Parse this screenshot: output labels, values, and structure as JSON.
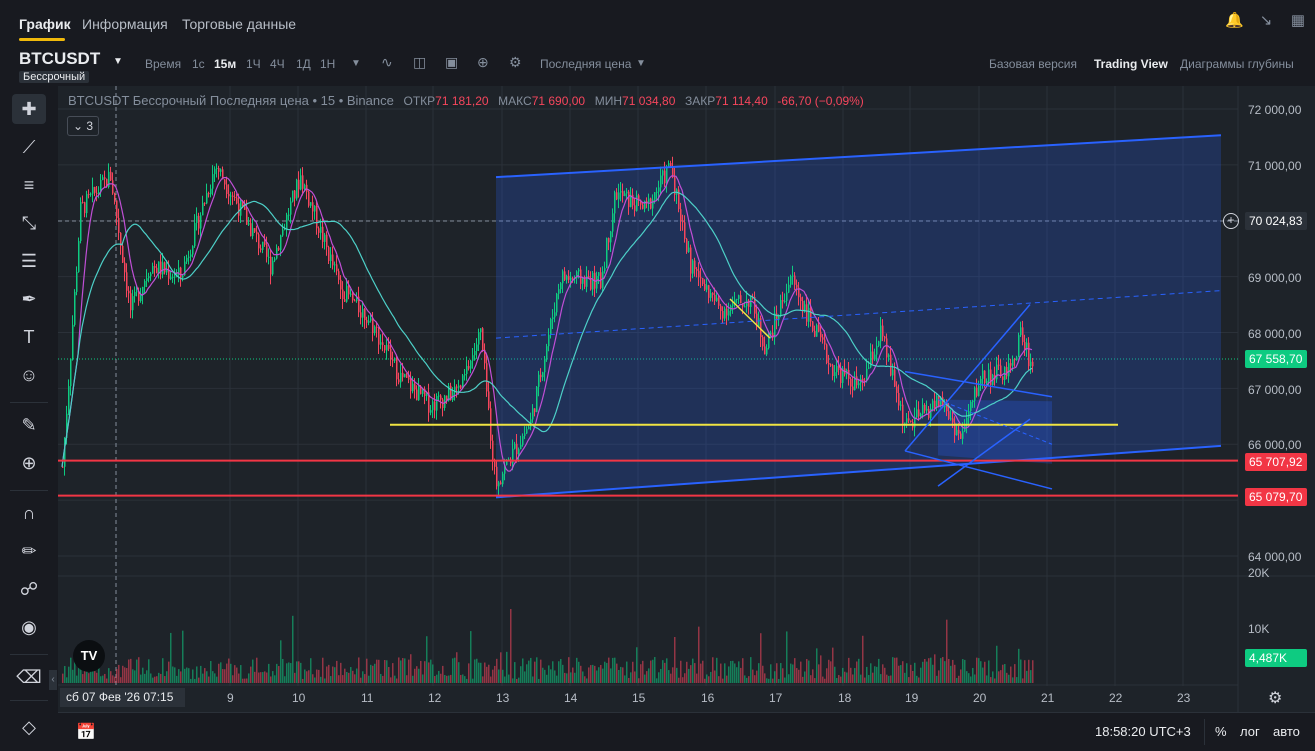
{
  "tabs": [
    {
      "label": "График",
      "active": true
    },
    {
      "label": "Информация",
      "active": false
    },
    {
      "label": "Торговые данные",
      "active": false
    }
  ],
  "top_icons": [
    "bell-icon",
    "shrink-icon",
    "grid-icon"
  ],
  "symbol": {
    "name": "BTCUSDT",
    "type": "Бессрочный"
  },
  "toolbar": {
    "time_label": "Время",
    "intervals": [
      {
        "label": "1с",
        "active": false
      },
      {
        "label": "15м",
        "active": true
      },
      {
        "label": "1Ч",
        "active": false
      },
      {
        "label": "4Ч",
        "active": false
      },
      {
        "label": "1Д",
        "active": false
      },
      {
        "label": "1Н",
        "active": false
      }
    ],
    "price_type": "Последняя цена",
    "views": [
      {
        "label": "Базовая версия",
        "active": false
      },
      {
        "label": "Trading View",
        "active": true
      },
      {
        "label": "Диаграммы глубины",
        "active": false
      }
    ]
  },
  "legend": {
    "title": "BTCUSDT Бессрочный Последняя цена • 15 • Binance",
    "open_label": "ОТКР",
    "open": "71 181,20",
    "high_label": "МАКС",
    "high": "71 690,00",
    "low_label": "МИН",
    "low": "71 034,80",
    "close_label": "ЗАКР",
    "close": "71 114,40",
    "change": "-66,70 (−0,09%)",
    "indicators_count": "3"
  },
  "price_axis": {
    "ticks": [
      "72 000,00",
      "71 000,00",
      "69 000,00",
      "68 000,00",
      "67 000,00",
      "66 000,00",
      "64 000,00"
    ],
    "crosshair_price": "70 024,83",
    "last_price": "67 558,70",
    "level_1": "65 707,92",
    "level_2": "65 079,70"
  },
  "volume_axis": {
    "ticks": [
      "20K",
      "10K"
    ],
    "current": "4,487K"
  },
  "time_axis": {
    "cursor": "сб 07 Фев '26   07:15",
    "ticks": [
      "9",
      "10",
      "11",
      "12",
      "13",
      "14",
      "15",
      "16",
      "17",
      "18",
      "19",
      "20",
      "21",
      "22",
      "23"
    ]
  },
  "footer": {
    "clock": "18:58:20 UTC+3",
    "percent": "%",
    "log": "лог",
    "auto": "авто"
  },
  "colors": {
    "up": "#0ecb81",
    "down": "#f6465d",
    "channel": "#2962ff",
    "yellow_line": "#f0e442",
    "red_level": "#f23645",
    "accent": "#f0b90b"
  },
  "tools": [
    "crosshair-icon",
    "trendline-icon",
    "fib-icon",
    "pattern-icon",
    "projection-icon",
    "brush-icon",
    "text-icon",
    "emoji-icon",
    "ruler-icon",
    "zoom-icon",
    "magnet-icon",
    "lock-pencil-icon",
    "unlock-icon",
    "eye-icon",
    "trash-icon",
    "layers-icon"
  ]
}
